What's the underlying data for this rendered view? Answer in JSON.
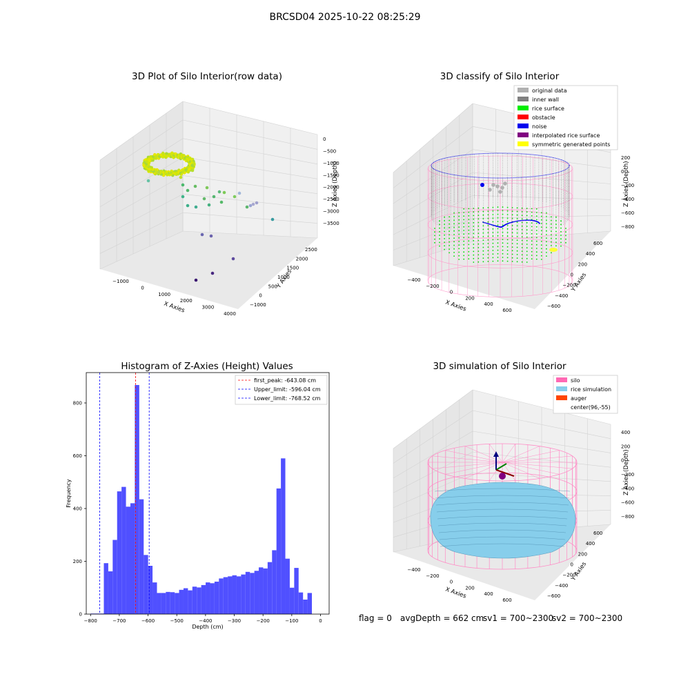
{
  "suptitle": "BRCSD04 2025-10-22 08:25:29",
  "panels": {
    "raw": {
      "title": "3D Plot of Silo Interior(row data)",
      "xlabel": "X Axies",
      "ylabel": "Y Axies",
      "zlabel": "Z Axies (Depth)",
      "xticks": [
        "−1000",
        "0",
        "1000",
        "2000",
        "3000",
        "4000"
      ],
      "yticks": [
        "−1000",
        "0",
        "500",
        "1000",
        "1500",
        "2000",
        "2500"
      ],
      "zticks": [
        "0",
        "−500",
        "−1000",
        "−1500",
        "−2000",
        "−2500",
        "−3000",
        "−3500"
      ]
    },
    "classify": {
      "title": "3D classify of Silo Interior",
      "xlabel": "X Axies",
      "ylabel": "Y Axies",
      "zlabel": "Z Axies (Depth)",
      "xticks": [
        "−400",
        "−200",
        "0",
        "200",
        "400",
        "600"
      ],
      "yticks": [
        "−600",
        "−400",
        "−200",
        "0",
        "200",
        "400",
        "600"
      ],
      "zticks": [
        "200",
        "0",
        "−200",
        "−400",
        "−600",
        "−800"
      ],
      "legend": [
        {
          "label": "original data",
          "color": "#b0b0b0"
        },
        {
          "label": "inner wall",
          "color": "#808080"
        },
        {
          "label": "rice surface",
          "color": "#00ee00"
        },
        {
          "label": "obstacle",
          "color": "#ff0000"
        },
        {
          "label": "noise",
          "color": "#0000ee"
        },
        {
          "label": "interpolated rice surface",
          "color": "#800080"
        },
        {
          "label": "symmetric generated points",
          "color": "#ffff00"
        }
      ]
    },
    "simulation": {
      "title": "3D simulation of Silo Interior",
      "xlabel": "X Axies",
      "ylabel": "Y Axies",
      "zlabel": "Z Axies (Depth)",
      "xticks": [
        "−400",
        "−200",
        "0",
        "200",
        "400",
        "600"
      ],
      "yticks": [
        "−600",
        "−400",
        "−200",
        "0",
        "200",
        "400",
        "600"
      ],
      "zticks": [
        "400",
        "200",
        "0",
        "−200",
        "−400",
        "−600",
        "−800"
      ],
      "legend": [
        {
          "label": "silo",
          "color": "#ff69b4"
        },
        {
          "label": "rice simulation",
          "color": "#87ceeb"
        },
        {
          "label": "auger",
          "color": "#ff4500"
        },
        {
          "label": "center(96,-55)",
          "color": "#ffffff"
        }
      ]
    }
  },
  "chart_data": {
    "type": "bar",
    "title": "Histogram of Z-Axies (Height) Values",
    "xlabel": "Depth (cm)",
    "ylabel": "Frequency",
    "xlim": [
      -815,
      30
    ],
    "ylim": [
      0,
      915
    ],
    "bar_color": "#5050ff",
    "xticks": [
      -800,
      -700,
      -600,
      -500,
      -400,
      -300,
      -200,
      -100,
      0
    ],
    "yticks": [
      0,
      200,
      400,
      600,
      800
    ],
    "bin_start": -800,
    "bin_width": 15.4,
    "values": [
      2,
      2,
      2,
      193,
      162,
      281,
      465,
      482,
      407,
      420,
      868,
      435,
      224,
      183,
      120,
      80,
      80,
      84,
      83,
      80,
      92,
      98,
      90,
      104,
      101,
      110,
      120,
      117,
      123,
      135,
      140,
      143,
      147,
      143,
      150,
      160,
      156,
      164,
      177,
      173,
      197,
      242,
      476,
      590,
      210,
      100,
      175,
      82,
      55,
      80
    ],
    "lines": [
      {
        "label": "first_peak: -643.08 cm",
        "x": -643.08,
        "color": "#ff0000"
      },
      {
        "label": "Upper_limit: -596.04 cm",
        "x": -596.04,
        "color": "#0000ff"
      },
      {
        "label": "Lower_limit: -768.52 cm",
        "x": -768.52,
        "color": "#0000ff"
      }
    ]
  },
  "footer": {
    "flag": "flag = 0",
    "avg": "avgDepth = 662 cm",
    "sv1": "sv1 = 700~2300",
    "sv2": "sv2 = 700~2300"
  }
}
